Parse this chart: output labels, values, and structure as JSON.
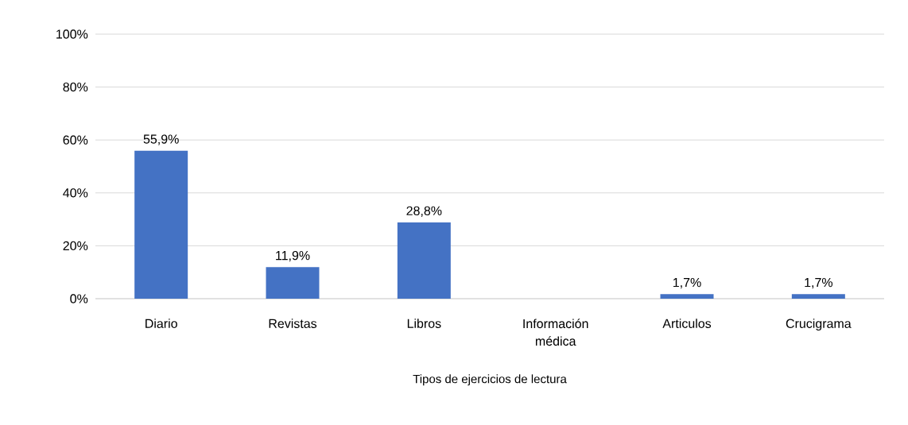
{
  "chart_data": {
    "type": "bar",
    "xlabel": "Tipos de ejercicios de lectura",
    "categories": [
      "Diario",
      "Revistas",
      "Libros",
      "Información médica",
      "Articulos",
      "Crucigrama"
    ],
    "values": [
      55.9,
      11.9,
      28.8,
      0,
      1.7,
      1.7
    ],
    "value_labels": [
      "55,9%",
      "11,9%",
      "28,8%",
      null,
      "1,7%",
      "1,7%"
    ],
    "color": "#4472c4",
    "ylim": [
      0,
      100
    ],
    "yticks": [
      {
        "value": 0,
        "label": "0%"
      },
      {
        "value": 20,
        "label": "20%"
      },
      {
        "value": 40,
        "label": "40%"
      },
      {
        "value": 60,
        "label": "60%"
      },
      {
        "value": 80,
        "label": "80%"
      },
      {
        "value": 100,
        "label": "100%"
      }
    ],
    "grid": "y"
  }
}
